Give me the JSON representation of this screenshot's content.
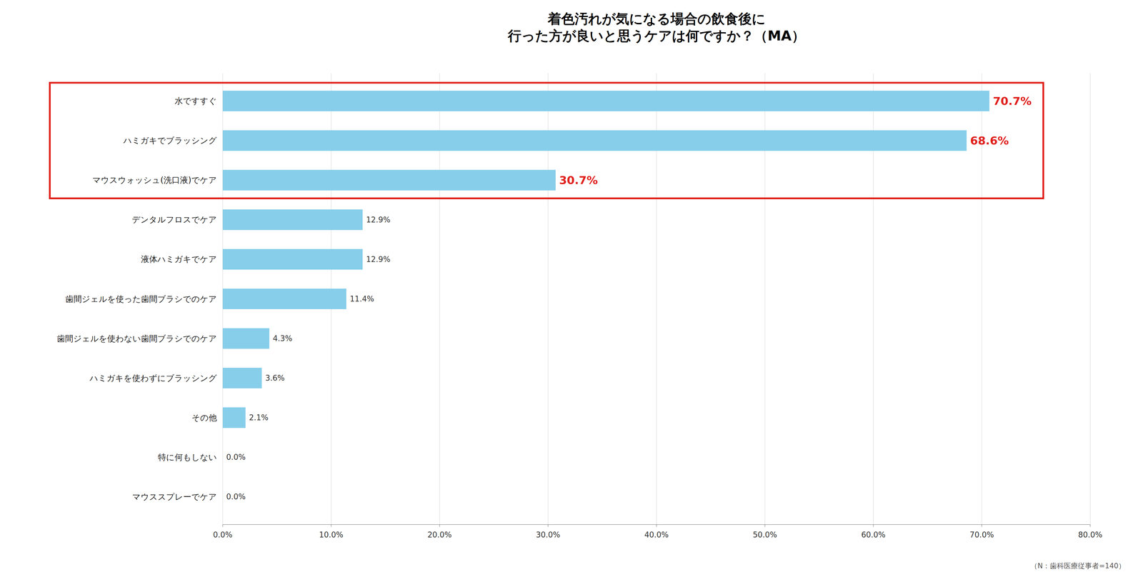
{
  "chart_data": {
    "type": "bar",
    "orientation": "horizontal",
    "title": "着色汚れが気になる場合の飲食後に\n行った方が良いと思うケアは何ですか？（MA）",
    "categories": [
      "水ですすぐ",
      "ハミガキでブラッシング",
      "マウスウォッシュ(洗口液)でケア",
      "デンタルフロスでケア",
      "液体ハミガキでケア",
      "歯間ジェルを使った歯間ブラシでのケア",
      "歯間ジェルを使わない歯間ブラシでのケア",
      "ハミガキを使わずにブラッシング",
      "その他",
      "特に何もしない",
      "マウススプレーでケア"
    ],
    "values": [
      70.7,
      68.6,
      30.7,
      12.9,
      12.9,
      11.4,
      4.3,
      3.6,
      2.1,
      0.0,
      0.0
    ],
    "value_labels": [
      "70.7%",
      "68.6%",
      "30.7%",
      "12.9%",
      "12.9%",
      "11.4%",
      "4.3%",
      "3.6%",
      "2.1%",
      "0.0%",
      "0.0%"
    ],
    "data_labels": true,
    "color": "#87CEEB",
    "xlim": [
      0,
      80
    ],
    "xticks": [
      {
        "value": 0,
        "label": "0.0%"
      },
      {
        "value": 10,
        "label": "10.0%"
      },
      {
        "value": 20,
        "label": "20.0%"
      },
      {
        "value": 30,
        "label": "30.0%"
      },
      {
        "value": 40,
        "label": "40.0%"
      },
      {
        "value": 50,
        "label": "50.0%"
      },
      {
        "value": 60,
        "label": "60.0%"
      },
      {
        "value": 70,
        "label": "70.0%"
      },
      {
        "value": 80,
        "label": "80.0%"
      }
    ],
    "grid": true,
    "annotations": [
      "（N：歯科医療従事者=140）"
    ]
  }
}
